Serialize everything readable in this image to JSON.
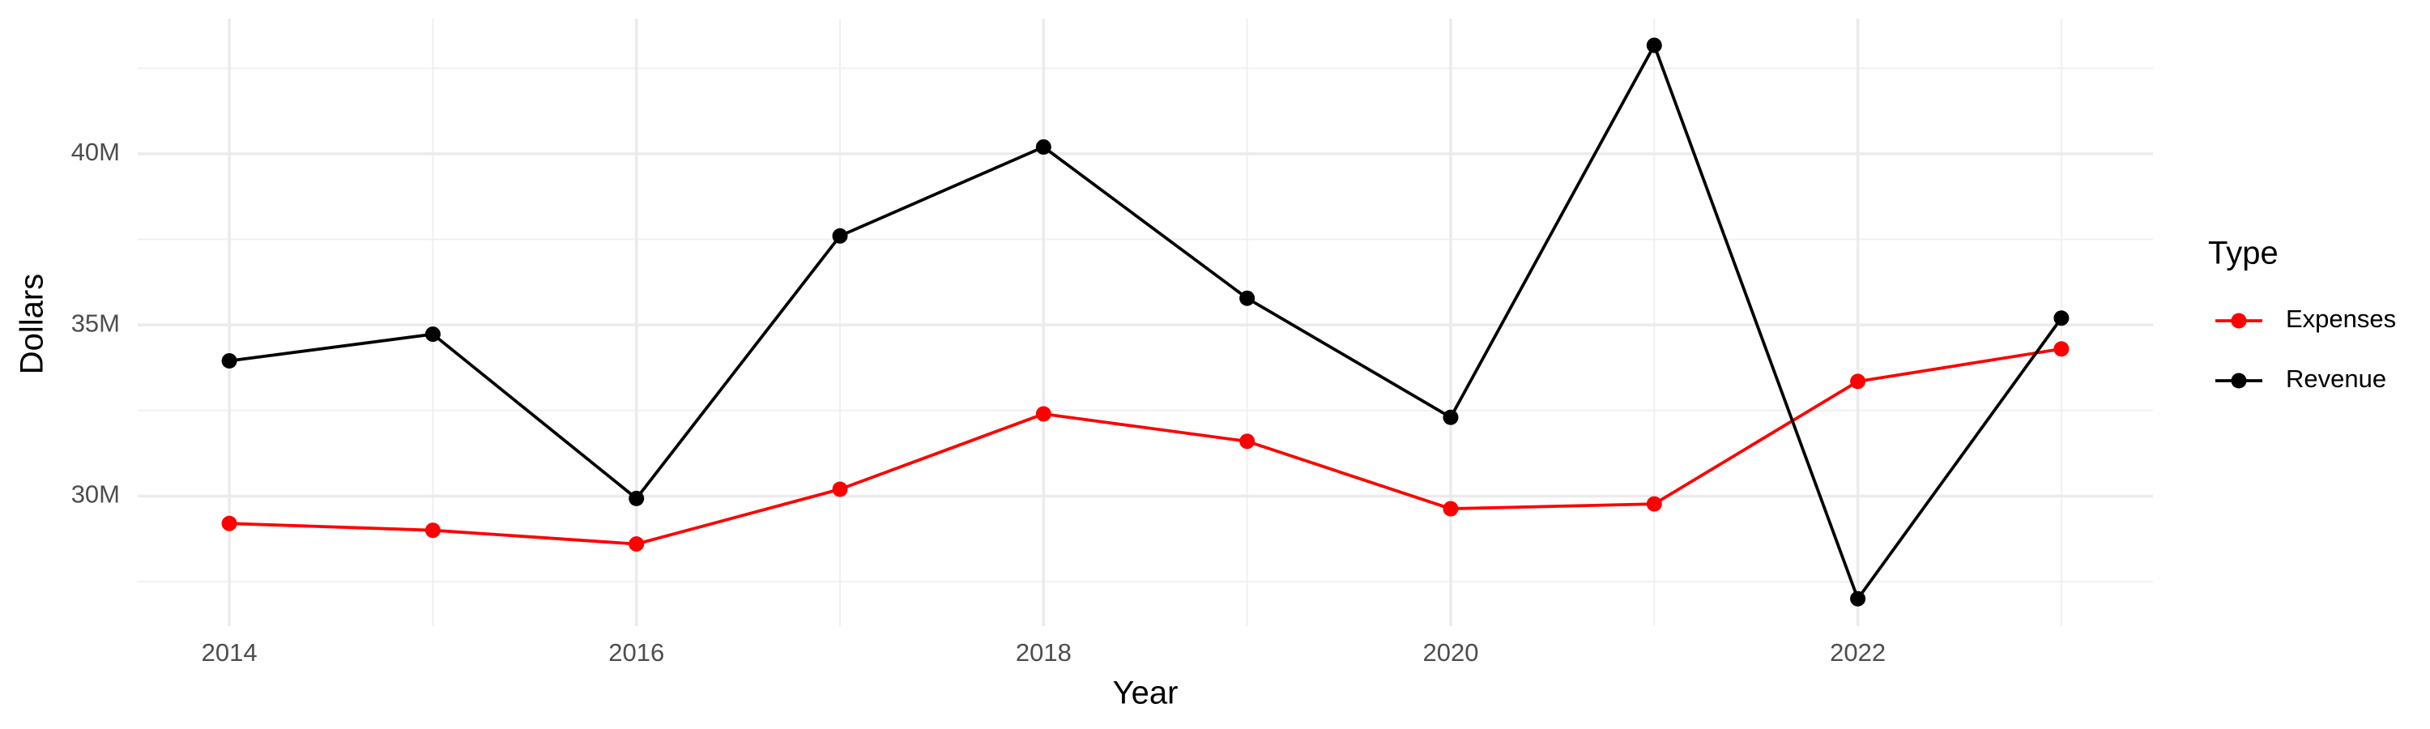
{
  "chart_data": {
    "type": "line",
    "x_label": "Year",
    "y_label": "Dollars",
    "x": [
      2014,
      2015,
      2016,
      2017,
      2018,
      2019,
      2020,
      2021,
      2022,
      2023
    ],
    "series": [
      {
        "name": "Expenses",
        "color": "#ff0000",
        "values": [
          29200000,
          29000000,
          28600000,
          30200000,
          32400000,
          31600000,
          29630000,
          29770000,
          33350000,
          34300000
        ]
      },
      {
        "name": "Revenue",
        "color": "#000000",
        "values": [
          33950000,
          34730000,
          29930000,
          37600000,
          40200000,
          35780000,
          32300000,
          43170000,
          27000000,
          35200000
        ]
      }
    ],
    "xlim": [
      2013.55,
      2023.45
    ],
    "xticks": [
      2014,
      2016,
      2018,
      2020,
      2022
    ],
    "ylim": [
      26200000,
      43950000
    ],
    "yticks": [
      {
        "value": 30000000,
        "label": "30M"
      },
      {
        "value": 35000000,
        "label": "35M"
      },
      {
        "value": 40000000,
        "label": "40M"
      }
    ],
    "grid": true,
    "legend_title": "Type",
    "legend_position": "right"
  }
}
